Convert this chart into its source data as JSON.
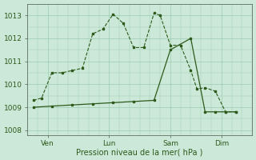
{
  "xlabel": "Pression niveau de la mer( hPa )",
  "ylim": [
    1007.8,
    1013.5
  ],
  "yticks": [
    1008,
    1009,
    1010,
    1011,
    1012,
    1013
  ],
  "background_color": "#cce8d8",
  "grid_color": "#99ccb0",
  "line_color": "#2d5a1b",
  "xtick_labels": [
    "Ven",
    "Lun",
    "Sam",
    "Dim"
  ],
  "xtick_positions": [
    1,
    4,
    7,
    9.5
  ],
  "xlim": [
    0,
    11
  ],
  "series1_x": [
    0.3,
    0.7,
    1.2,
    1.7,
    2.2,
    2.7,
    3.2,
    3.7,
    4.2,
    4.7,
    5.2,
    5.7,
    6.2,
    6.5,
    7.0,
    7.5,
    8.0,
    8.3,
    8.7,
    9.2,
    9.7,
    10.2
  ],
  "series1_y": [
    1009.3,
    1009.4,
    1010.5,
    1010.5,
    1010.6,
    1010.7,
    1012.2,
    1012.4,
    1013.05,
    1012.65,
    1011.6,
    1011.6,
    1013.1,
    1013.0,
    1011.7,
    1011.7,
    1010.6,
    1009.8,
    1009.85,
    1009.7,
    1008.8,
    1008.8
  ],
  "series2_x": [
    0.3,
    1.2,
    2.2,
    3.2,
    4.2,
    5.2,
    6.2,
    7.0,
    8.0,
    8.7,
    9.2,
    9.7,
    10.2
  ],
  "series2_y": [
    1009.0,
    1009.05,
    1009.1,
    1009.15,
    1009.2,
    1009.25,
    1009.3,
    1011.5,
    1012.0,
    1008.8,
    1008.8,
    1008.8,
    1008.8
  ],
  "xlabel_fontsize": 7,
  "tick_fontsize": 6.5
}
